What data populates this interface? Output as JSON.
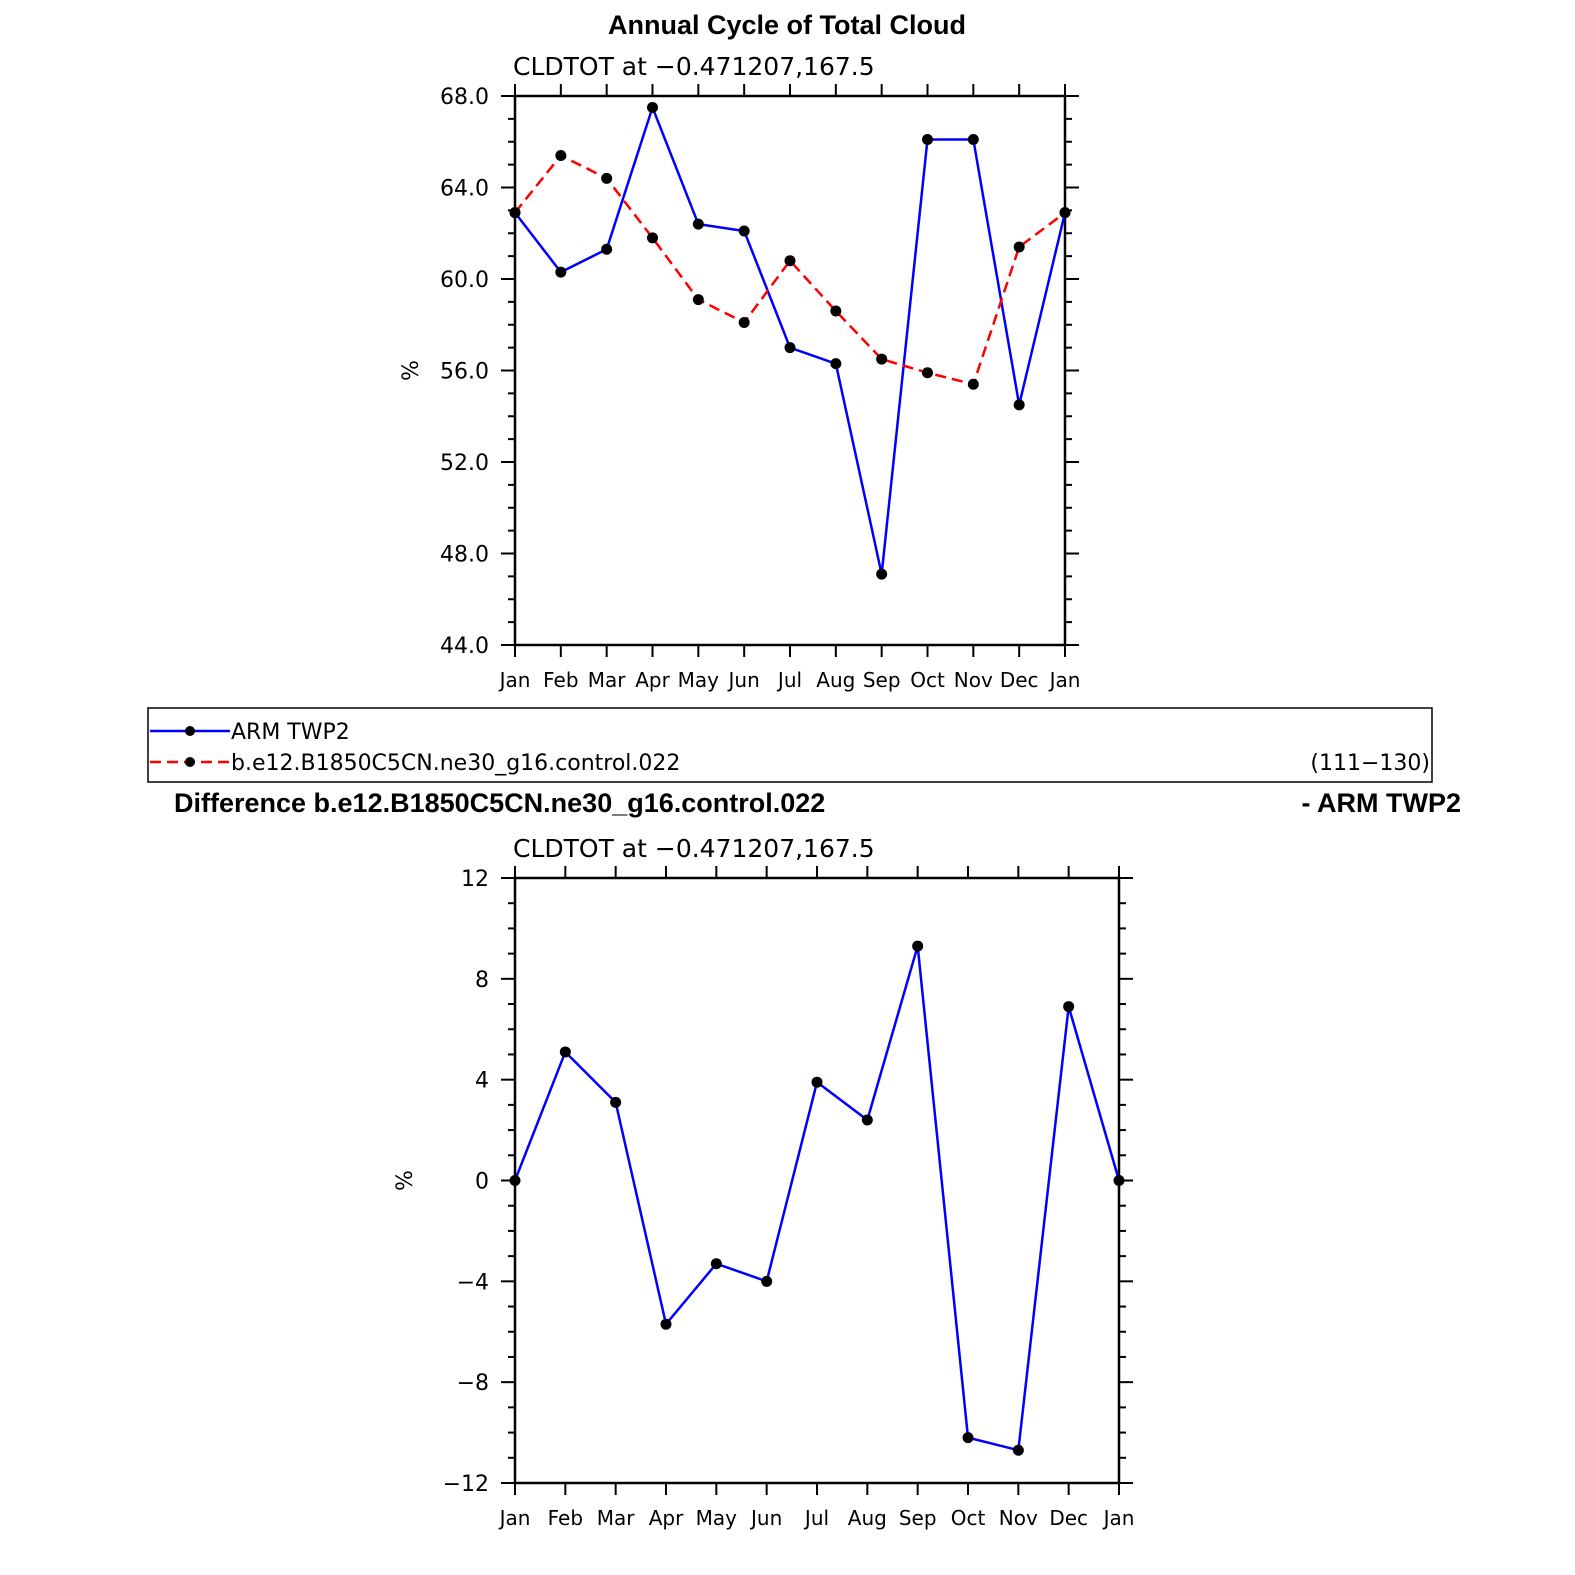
{
  "chart_data": [
    {
      "type": "line",
      "title": "Annual Cycle of Total Cloud",
      "subtitle": "CLDTOT at −0.471207,167.5",
      "ylabel": "%",
      "ylim": [
        44,
        68
      ],
      "yticks": [
        "44.0",
        "48.0",
        "52.0",
        "56.0",
        "60.0",
        "64.0",
        "68.0"
      ],
      "ytick_values": [
        44,
        48,
        52,
        56,
        60,
        64,
        68
      ],
      "categories": [
        "Jan",
        "Feb",
        "Mar",
        "Apr",
        "May",
        "Jun",
        "Jul",
        "Aug",
        "Sep",
        "Oct",
        "Nov",
        "Dec",
        "Jan"
      ],
      "series": [
        {
          "name": "ARM TWP2",
          "color": "#0000ff",
          "dash": "solid",
          "values": [
            62.9,
            60.3,
            61.3,
            67.5,
            62.4,
            62.1,
            57.0,
            56.3,
            47.1,
            66.1,
            66.1,
            54.5,
            62.9
          ]
        },
        {
          "name": "b.e12.B1850C5CN.ne30_g16.control.022",
          "color": "#ff0000",
          "dash": "dashed",
          "values": [
            62.9,
            65.4,
            64.4,
            61.8,
            59.1,
            58.1,
            60.8,
            58.6,
            56.5,
            55.9,
            55.4,
            61.4,
            62.9
          ]
        }
      ],
      "legend": {
        "entries": [
          "ARM TWP2",
          "b.e12.B1850C5CN.ne30_g16.control.022"
        ],
        "years": "(111−130)"
      }
    },
    {
      "type": "line",
      "title_left": "Difference b.e12.B1850C5CN.ne30_g16.control.022",
      "title_right": "- ARM TWP2",
      "subtitle": "CLDTOT at −0.471207,167.5",
      "ylabel": "%",
      "ylim": [
        -12,
        12
      ],
      "yticks": [
        "−12",
        "−8",
        "−4",
        "0",
        "4",
        "8",
        "12"
      ],
      "ytick_values": [
        -12,
        -8,
        -4,
        0,
        4,
        8,
        12
      ],
      "categories": [
        "Jan",
        "Feb",
        "Mar",
        "Apr",
        "May",
        "Jun",
        "Jul",
        "Aug",
        "Sep",
        "Oct",
        "Nov",
        "Dec",
        "Jan"
      ],
      "series": [
        {
          "name": "Difference",
          "color": "#0000ff",
          "dash": "solid",
          "values": [
            0.0,
            5.1,
            3.1,
            -5.7,
            -3.3,
            -4.0,
            3.9,
            2.4,
            9.3,
            -10.2,
            -10.7,
            6.9,
            0.0
          ]
        }
      ]
    }
  ]
}
